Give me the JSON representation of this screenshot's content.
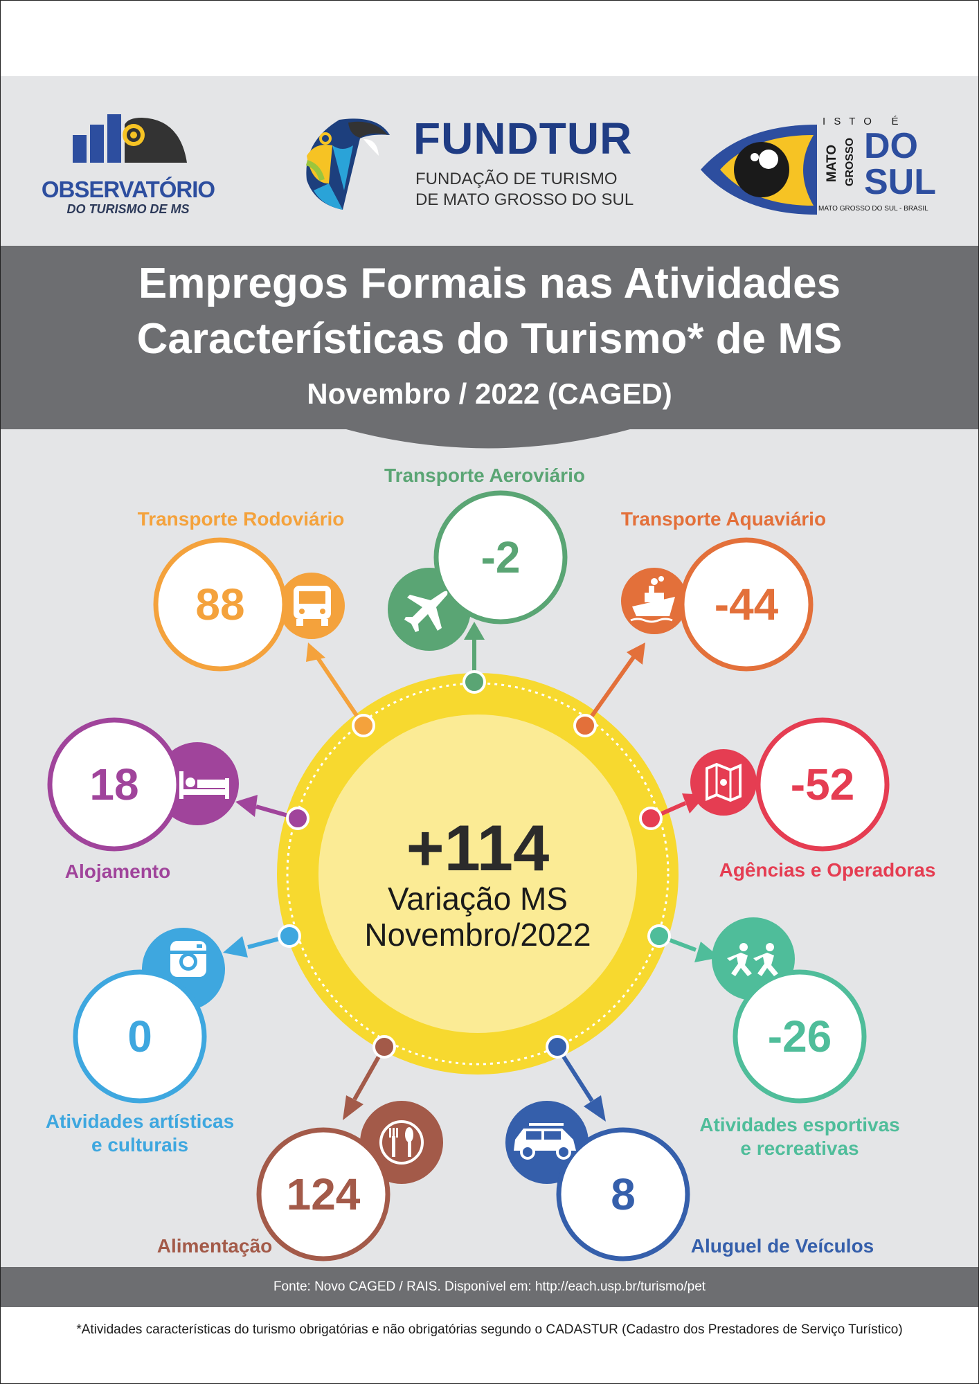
{
  "logos": {
    "observatorio_line1": "OBSERVATÓRIO",
    "observatorio_line2": "DO TURISMO DE MS",
    "fundtur_name": "FUNDTUR",
    "fundtur_line1": "FUNDAÇÃO DE TURISMO",
    "fundtur_line2": "DE MATO GROSSO DO SUL",
    "ms_isto_e": "I S T O   É",
    "ms_mato": "MATO",
    "ms_grosso": "GROSSO",
    "ms_do": "DO",
    "ms_sul": "SUL",
    "ms_tagline": "MATO GROSSO DO SUL - BRASIL"
  },
  "title": {
    "line1": "Empregos Formais nas Atividades",
    "line2": "Características do Turismo* de MS",
    "subtitle": "Novembro / 2022 (CAGED)"
  },
  "center": {
    "value": "+114",
    "line1": "Variação MS",
    "line2": "Novembro/2022"
  },
  "categories": {
    "aereo": {
      "label": "Transporte Aeroviário",
      "value": "-2",
      "color": "#5aa574",
      "icon": "airplane-icon"
    },
    "rodoviario": {
      "label": "Transporte Rodoviário",
      "value": "88",
      "color": "#f4a23c",
      "icon": "bus-icon"
    },
    "aquaviario": {
      "label": "Transporte Aquaviário",
      "value": "-44",
      "color": "#e3703a",
      "icon": "ship-icon"
    },
    "alojamento": {
      "label": "Alojamento",
      "value": "18",
      "color": "#a0449b",
      "icon": "bed-icon"
    },
    "agencias": {
      "label": "Agências e Operadoras",
      "value": "-52",
      "color": "#e53d52",
      "icon": "map-icon"
    },
    "artisticas": {
      "label1": "Atividades artísticas",
      "label2": "e culturais",
      "value": "0",
      "color": "#3ea7df",
      "icon": "camera-icon"
    },
    "esportivas": {
      "label1": "Atividades esportivas",
      "label2": "e recreativas",
      "value": "-26",
      "color": "#4fbd9a",
      "icon": "runners-icon"
    },
    "alimentacao": {
      "label": "Alimentação",
      "value": "124",
      "color": "#a35a49",
      "icon": "cutlery-icon"
    },
    "aluguel": {
      "label": "Aluguel de Veículos",
      "value": "8",
      "color": "#355fab",
      "icon": "car-icon"
    }
  },
  "footer": {
    "source": "Fonte: Novo CAGED / RAIS. Disponível em: http://each.usp.br/turismo/pet",
    "note": "*Atividades características do turismo obrigatórias e não obrigatórias segundo o CADASTUR (Cadastro dos Prestadores de Serviço Turístico)"
  }
}
